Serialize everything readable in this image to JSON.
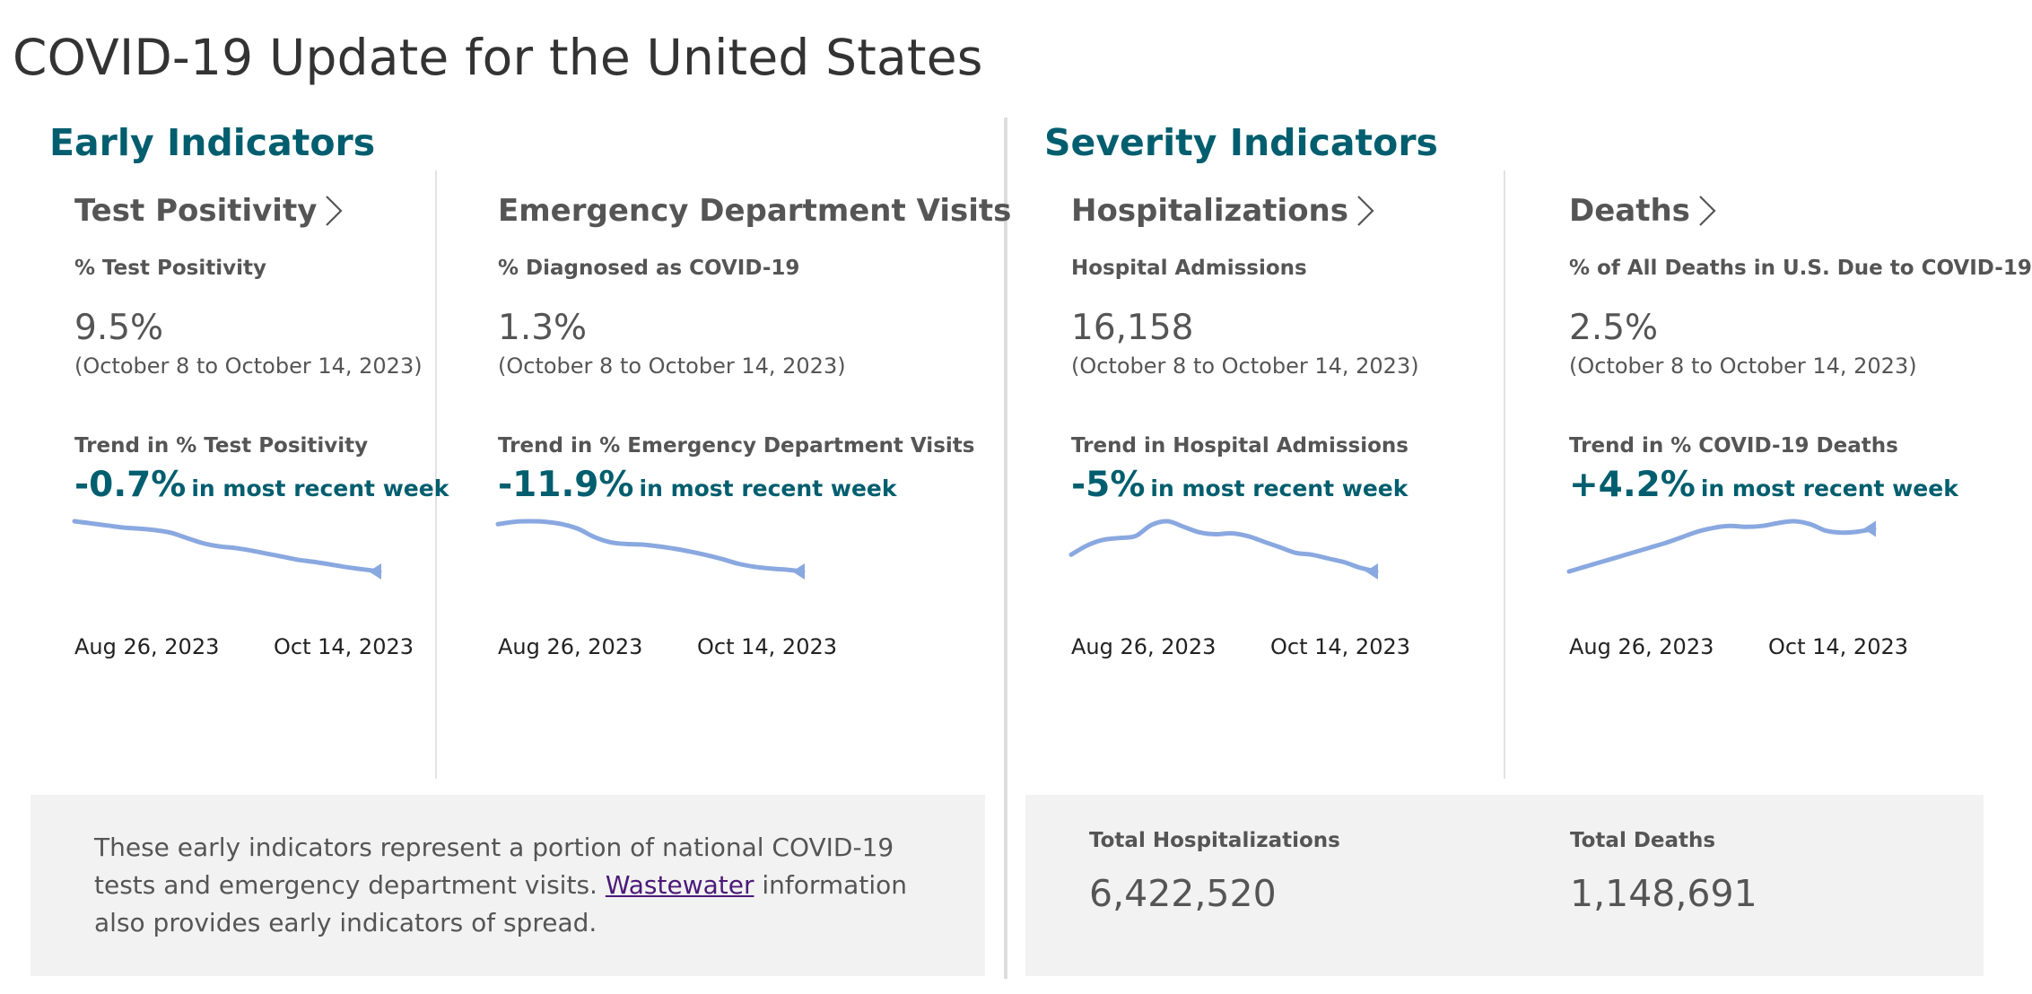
{
  "page": {
    "title": "COVID-19 Update for the United States"
  },
  "sections": {
    "early": {
      "heading": "Early Indicators"
    },
    "severity": {
      "heading": "Severity Indicators"
    }
  },
  "colors": {
    "accent": "#005e6e",
    "sparkline": "#8aa8e0",
    "panel": "#f2f2f2",
    "link": "#4b1a78"
  },
  "cards": [
    {
      "title": "Test Positivity",
      "metric_label": "% Test Positivity",
      "value": "9.5%",
      "date_range": "(October 8 to October 14, 2023)",
      "trend_label": "Trend in % Test Positivity",
      "trend_value": "-0.7%",
      "trend_suffix": "in most recent week",
      "axis_start": "Aug 26, 2023",
      "axis_end": "Oct 14, 2023",
      "series": [
        10.2,
        10.16,
        10.12,
        10.08,
        10.06,
        10.03,
        9.98,
        9.88,
        9.78,
        9.72,
        9.69,
        9.64,
        9.58,
        9.52,
        9.46,
        9.42,
        9.37,
        9.32,
        9.28,
        9.24
      ]
    },
    {
      "title": "Emergency Department Visits",
      "metric_label": "% Diagnosed as COVID-19",
      "value": "1.3%",
      "date_range": "(October 8 to October 14, 2023)",
      "trend_label": "Trend in % Emergency Department Visits",
      "trend_value": "-11.9%",
      "trend_suffix": "in most recent week",
      "axis_start": "Aug 26, 2023",
      "axis_end": "Oct 14, 2023",
      "series": [
        2.2,
        2.24,
        2.25,
        2.24,
        2.2,
        2.12,
        1.98,
        1.89,
        1.86,
        1.85,
        1.82,
        1.78,
        1.73,
        1.67,
        1.6,
        1.52,
        1.47,
        1.44,
        1.42,
        1.39
      ]
    },
    {
      "title": "Hospitalizations",
      "metric_label": "Hospital Admissions",
      "value": "16,158",
      "date_range": "(October 8 to October 14, 2023)",
      "trend_label": "Trend in Hospital Admissions",
      "trend_value": "-5%",
      "trend_suffix": "in most recent week",
      "axis_start": "Aug 26, 2023",
      "axis_end": "Oct 14, 2023",
      "series": [
        17900,
        18400,
        18700,
        18800,
        18900,
        19500,
        19700,
        19400,
        19100,
        19000,
        19050,
        18900,
        18600,
        18300,
        18000,
        17900,
        17700,
        17500,
        17200,
        17000
      ]
    },
    {
      "title": "Deaths",
      "metric_label": "% of All Deaths in U.S. Due to COVID-19",
      "value": "2.5%",
      "date_range": "(October 8 to October 14, 2023)",
      "trend_label": "Trend in % COVID-19 Deaths",
      "trend_value": "+4.2%",
      "trend_suffix": "in most recent week",
      "axis_start": "Aug 26, 2023",
      "axis_end": "Oct 14, 2023",
      "series": [
        2.0,
        2.05,
        2.1,
        2.15,
        2.2,
        2.25,
        2.3,
        2.36,
        2.42,
        2.46,
        2.48,
        2.47,
        2.48,
        2.51,
        2.53,
        2.5,
        2.43,
        2.41,
        2.42,
        2.45
      ]
    }
  ],
  "info": {
    "text_before": "These early indicators represent a portion of national COVID-19 tests and emergency department visits.",
    "link": "Wastewater",
    "text_after": "information also provides early indicators of spread."
  },
  "totals": {
    "hospitalizations_label": "Total Hospitalizations",
    "hospitalizations_value": "6,422,520",
    "deaths_label": "Total Deaths",
    "deaths_value": "1,148,691"
  }
}
